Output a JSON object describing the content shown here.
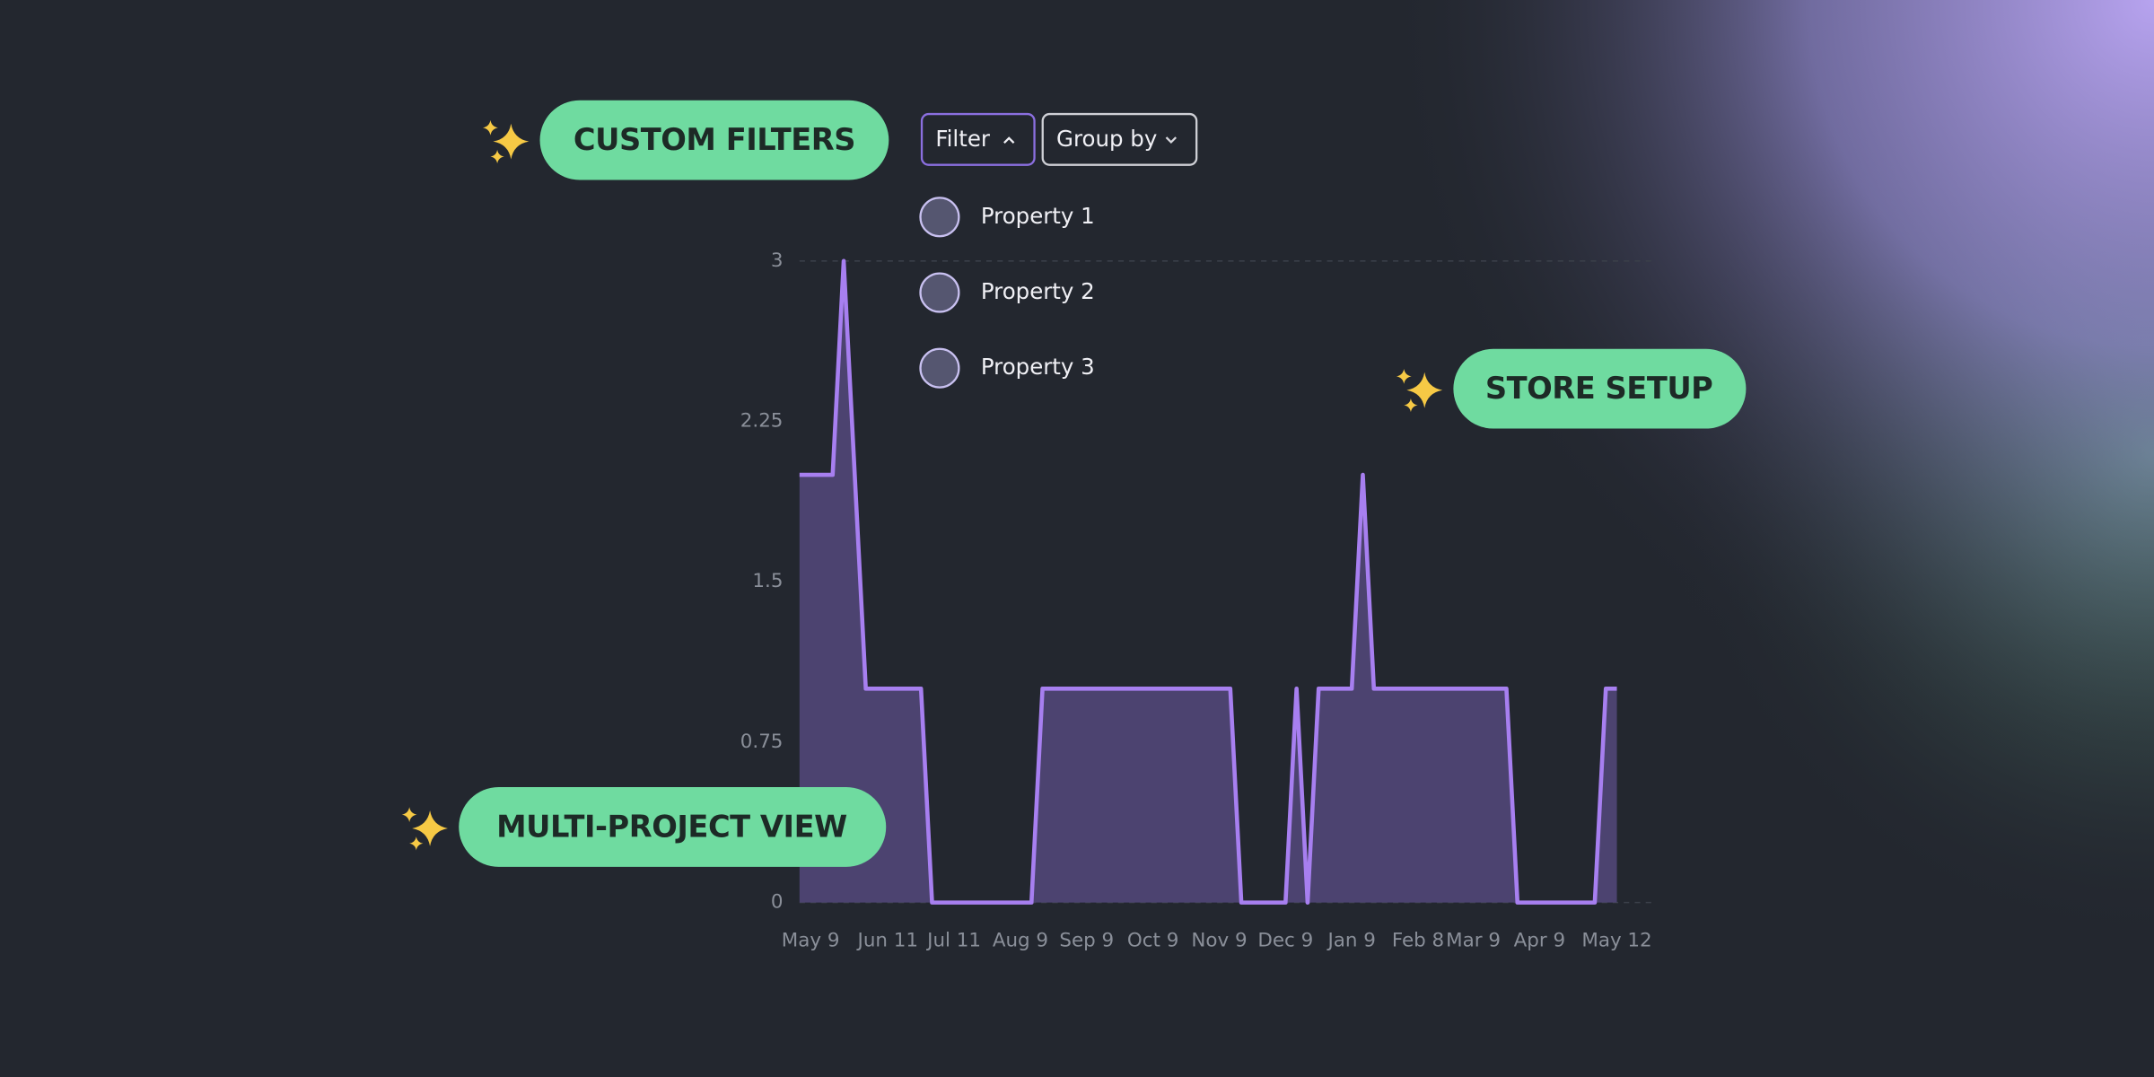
{
  "badges": [
    "CUSTOM FILTERS",
    "STORE SETUP",
    "MULTI-PROJECT VIEW"
  ],
  "toolbar": {
    "filter": "Filter",
    "group_by": "Group by"
  },
  "properties": [
    "Property 1",
    "Property 2",
    "Property 3"
  ],
  "chart_data": {
    "type": "area",
    "categories": [
      null,
      "May 9",
      null,
      null,
      null,
      null,
      null,
      null,
      "Jun 11",
      null,
      null,
      null,
      null,
      null,
      "Jul 11",
      null,
      null,
      null,
      null,
      null,
      "Aug 9",
      null,
      null,
      null,
      null,
      null,
      "Sep 9",
      null,
      null,
      null,
      null,
      null,
      "Oct 9",
      null,
      null,
      null,
      null,
      null,
      "Nov 9",
      null,
      null,
      null,
      null,
      null,
      "Dec 9",
      null,
      null,
      null,
      null,
      null,
      "Jan 9",
      null,
      null,
      null,
      null,
      null,
      "Feb 8",
      null,
      null,
      null,
      null,
      "Mar 9",
      null,
      null,
      null,
      null,
      null,
      "Apr 9",
      null,
      null,
      null,
      null,
      null,
      null,
      "May 12"
    ],
    "values": [
      2,
      2,
      2,
      2,
      3,
      2,
      1,
      1,
      1,
      1,
      1,
      1,
      0,
      0,
      0,
      0,
      0,
      0,
      0,
      0,
      0,
      0,
      1,
      1,
      1,
      1,
      1,
      1,
      1,
      1,
      1,
      1,
      1,
      1,
      1,
      1,
      1,
      1,
      1,
      1,
      0,
      0,
      0,
      0,
      0,
      1,
      0,
      1,
      1,
      1,
      1,
      2,
      1,
      1,
      1,
      1,
      1,
      1,
      1,
      1,
      1,
      1,
      1,
      1,
      1,
      0,
      0,
      0,
      0,
      0,
      0,
      0,
      0,
      1,
      1
    ],
    "color": "#a77ff0",
    "area_color": "#4c4370",
    "ylim": [
      0,
      3
    ],
    "yticks": [
      0,
      0.75,
      1.5,
      2.25,
      3
    ],
    "grid": true
  }
}
